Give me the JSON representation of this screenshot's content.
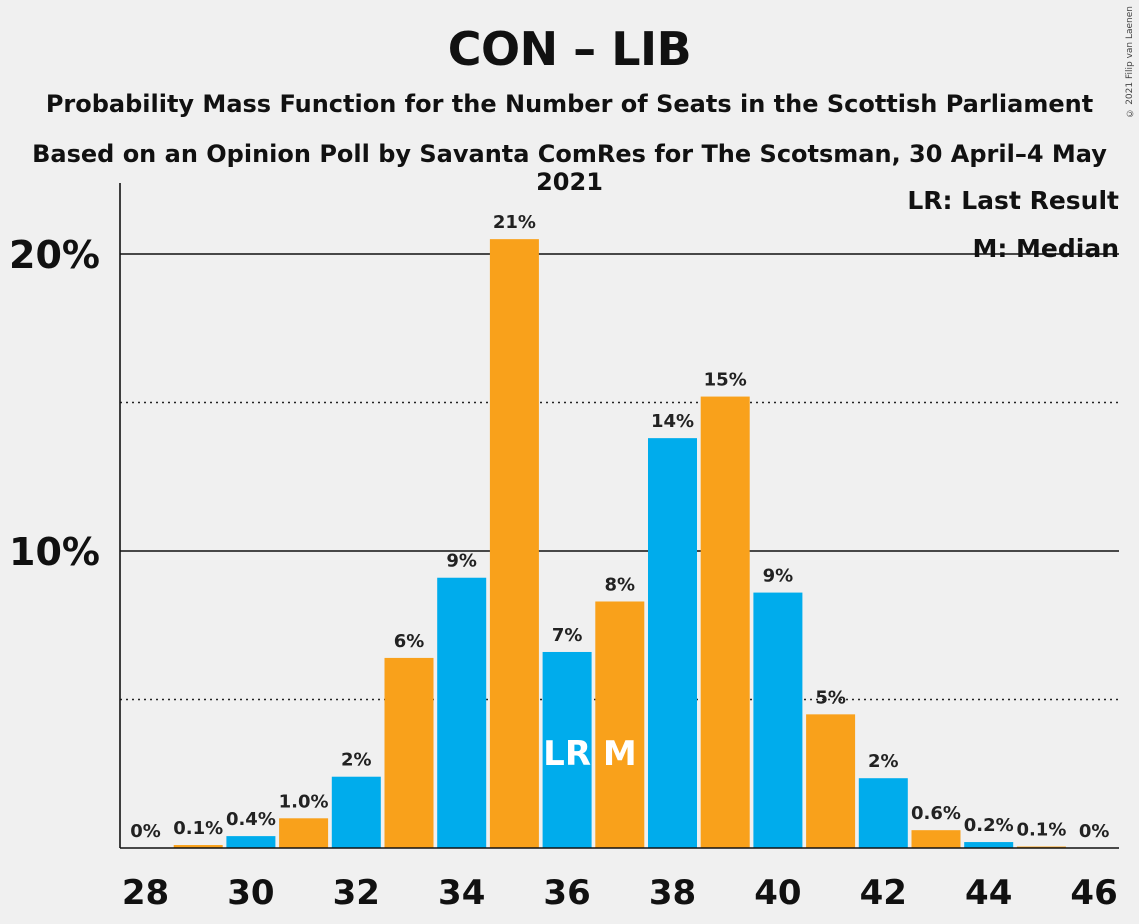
{
  "title": "CON – LIB",
  "subtitle1": "Probability Mass Function for the Number of Seats in the Scottish Parliament",
  "subtitle2": "Based on an Opinion Poll by Savanta ComRes for The Scotsman, 30 April–4 May 2021",
  "copyright": "© 2021 Filip van Laenen",
  "legend": {
    "lr": "LR: Last Result",
    "m": "M: Median"
  },
  "colors": {
    "blue": "#00acec",
    "orange": "#f9a11b",
    "background": "#f0f0f0"
  },
  "chart_data": {
    "type": "bar",
    "x": [
      28,
      29,
      30,
      31,
      32,
      33,
      34,
      35,
      36,
      37,
      38,
      39,
      40,
      41,
      42,
      43,
      44,
      45,
      46
    ],
    "values": [
      0,
      0.1,
      0.4,
      1.0,
      2.4,
      6.4,
      9.1,
      20.5,
      6.6,
      8.3,
      13.8,
      15.2,
      8.6,
      4.5,
      2.35,
      0.6,
      0.2,
      0.05,
      0
    ],
    "labels": [
      "0%",
      "0.1%",
      "0.4%",
      "1.0%",
      "2%",
      "6%",
      "9%",
      "21%",
      "7%",
      "8%",
      "14%",
      "15%",
      "9%",
      "5%",
      "2%",
      "0.6%",
      "0.2%",
      "0.1%",
      "0%"
    ],
    "colors": [
      "blue",
      "orange",
      "blue",
      "orange",
      "blue",
      "orange",
      "blue",
      "orange",
      "blue",
      "orange",
      "blue",
      "orange",
      "blue",
      "orange",
      "blue",
      "orange",
      "blue",
      "orange",
      "blue"
    ],
    "xticks": [
      "28",
      "30",
      "32",
      "34",
      "36",
      "38",
      "40",
      "42",
      "44",
      "46"
    ],
    "yticks": [
      {
        "value": 10,
        "label": "10%"
      },
      {
        "value": 20,
        "label": "20%"
      }
    ],
    "dotted_gridlines": [
      5,
      15
    ],
    "ylim": [
      0,
      22.4
    ],
    "markers": [
      {
        "x": 36,
        "text": "LR"
      },
      {
        "x": 37,
        "text": "M"
      }
    ],
    "legend_position": "top-right",
    "grid": true
  }
}
